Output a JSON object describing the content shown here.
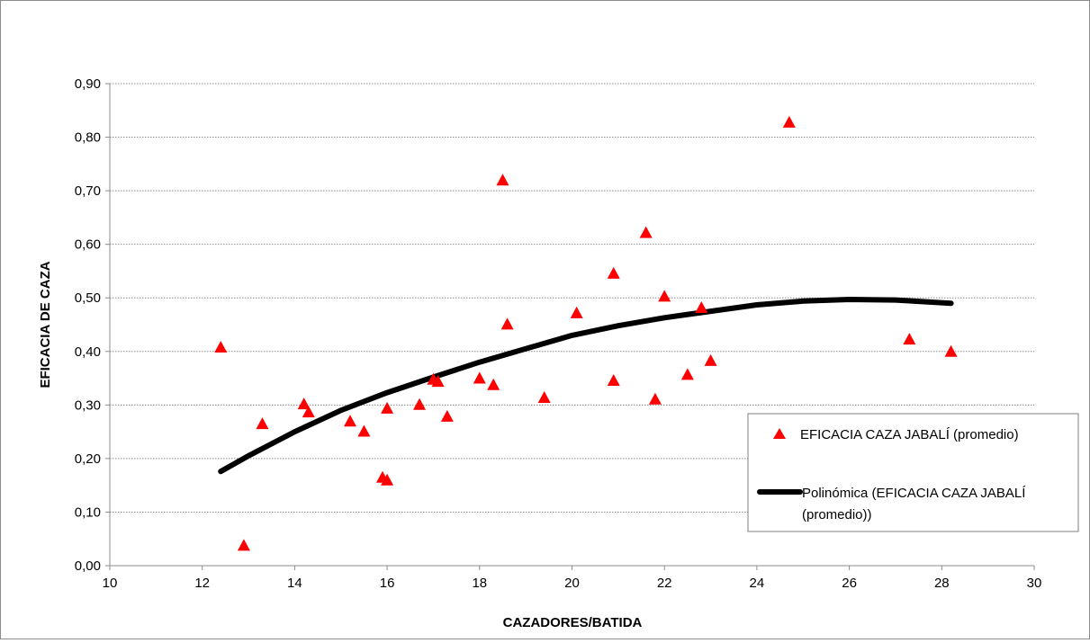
{
  "chart_data": {
    "type": "scatter",
    "title": "",
    "xlabel": "CAZADORES/BATIDA",
    "ylabel": "EFICACIA DE CAZA",
    "xlim": [
      10,
      30
    ],
    "ylim": [
      0,
      0.9
    ],
    "x_ticks": [
      10,
      12,
      14,
      16,
      18,
      20,
      22,
      24,
      26,
      28,
      30
    ],
    "y_ticks": [
      0,
      0.1,
      0.2,
      0.3,
      0.4,
      0.5,
      0.6,
      0.7,
      0.8,
      0.9
    ],
    "x_tick_labels": [
      "10",
      "12",
      "14",
      "16",
      "18",
      "20",
      "22",
      "24",
      "26",
      "28",
      "30"
    ],
    "y_tick_labels": [
      "0,00",
      "0,10",
      "0,20",
      "0,30",
      "0,40",
      "0,50",
      "0,60",
      "0,70",
      "0,80",
      "0,90"
    ],
    "grid": "horizontal dotted",
    "legend_position": "right",
    "series": [
      {
        "name": "EFICACIA CAZA JABALÍ (promedio)",
        "marker": "triangle",
        "color": "#ff0000",
        "points": [
          [
            12.4,
            0.408
          ],
          [
            12.9,
            0.038
          ],
          [
            13.3,
            0.265
          ],
          [
            14.2,
            0.302
          ],
          [
            14.3,
            0.287
          ],
          [
            15.2,
            0.27
          ],
          [
            15.5,
            0.251
          ],
          [
            15.9,
            0.165
          ],
          [
            16.0,
            0.294
          ],
          [
            16.0,
            0.16
          ],
          [
            16.7,
            0.301
          ],
          [
            17.0,
            0.348
          ],
          [
            17.1,
            0.344
          ],
          [
            17.3,
            0.279
          ],
          [
            18.0,
            0.35
          ],
          [
            18.3,
            0.338
          ],
          [
            18.5,
            0.72
          ],
          [
            18.6,
            0.451
          ],
          [
            19.4,
            0.314
          ],
          [
            20.1,
            0.472
          ],
          [
            20.9,
            0.546
          ],
          [
            20.9,
            0.346
          ],
          [
            21.6,
            0.622
          ],
          [
            21.8,
            0.311
          ],
          [
            22.0,
            0.503
          ],
          [
            22.5,
            0.357
          ],
          [
            22.8,
            0.482
          ],
          [
            23.0,
            0.383
          ],
          [
            24.7,
            0.828
          ],
          [
            27.3,
            0.423
          ],
          [
            28.2,
            0.4
          ]
        ]
      },
      {
        "name": "Polinómica (EFICACIA CAZA JABALÍ (promedio))",
        "type": "polynomial-trendline",
        "color": "#000000",
        "x_range": [
          12.4,
          28.2
        ],
        "x": [
          12.4,
          13,
          14,
          15,
          16,
          17,
          18,
          19,
          20,
          21,
          22,
          23,
          24,
          25,
          26,
          27,
          28.2
        ],
        "y": [
          0.176,
          0.205,
          0.25,
          0.29,
          0.323,
          0.352,
          0.38,
          0.405,
          0.43,
          0.448,
          0.463,
          0.475,
          0.487,
          0.494,
          0.497,
          0.496,
          0.49
        ]
      }
    ]
  }
}
